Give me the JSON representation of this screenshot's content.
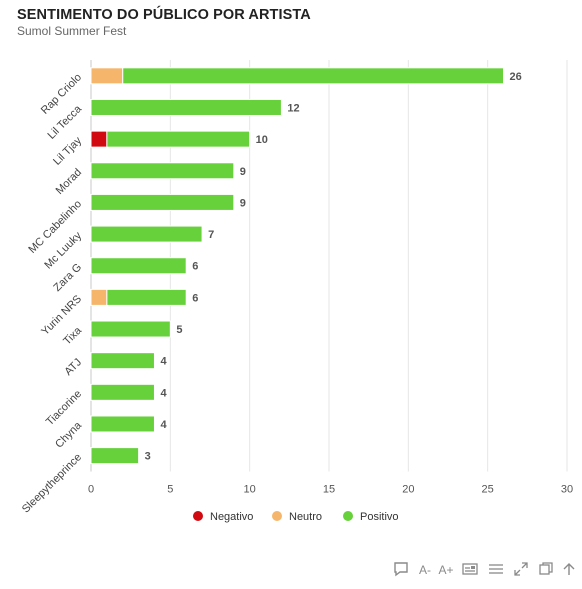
{
  "chart_data": {
    "type": "bar",
    "orientation": "horizontal",
    "stacked": true,
    "title": "SENTIMENTO DO PÚBLICO POR ARTISTA",
    "subtitle": "Sumol Summer Fest",
    "categories": [
      "Rap Criolo",
      "Lil Tecca",
      "Lil Tjay",
      "Morad",
      "MC Cabelinho",
      "Mc Luuky",
      "Zara G",
      "Yurin NRS",
      "Tixa",
      "ATJ",
      "Tiacorine",
      "Chyna",
      "Sleepytheprince"
    ],
    "series": [
      {
        "name": "Negativo",
        "color": "#d10a11",
        "values": [
          0,
          0,
          1,
          0,
          0,
          0,
          0,
          0,
          0,
          0,
          0,
          0,
          0
        ]
      },
      {
        "name": "Neutro",
        "color": "#f5b56b",
        "values": [
          2,
          0,
          0,
          0,
          0,
          0,
          0,
          1,
          0,
          0,
          0,
          0,
          0
        ]
      },
      {
        "name": "Positivo",
        "color": "#66d13b",
        "values": [
          24,
          12,
          9,
          9,
          9,
          7,
          6,
          5,
          5,
          4,
          4,
          4,
          3
        ]
      }
    ],
    "totals": [
      "26",
      "12",
      "10",
      "9",
      "9",
      "7",
      "6",
      "6",
      "5",
      "4",
      "4",
      "4",
      "3"
    ],
    "xlim": [
      0,
      30
    ],
    "xticks": [
      "0",
      "5",
      "10",
      "15",
      "20",
      "25",
      "30"
    ],
    "grid": true,
    "legend": "bottom"
  },
  "toolbar": {
    "font_decrease": "A-",
    "font_increase": "A+"
  },
  "icons": [
    "comment-icon",
    "font-decrease-icon",
    "font-increase-icon",
    "embed-icon",
    "table-icon",
    "fullscreen-icon",
    "copy-icon",
    "arrow-up-icon"
  ]
}
